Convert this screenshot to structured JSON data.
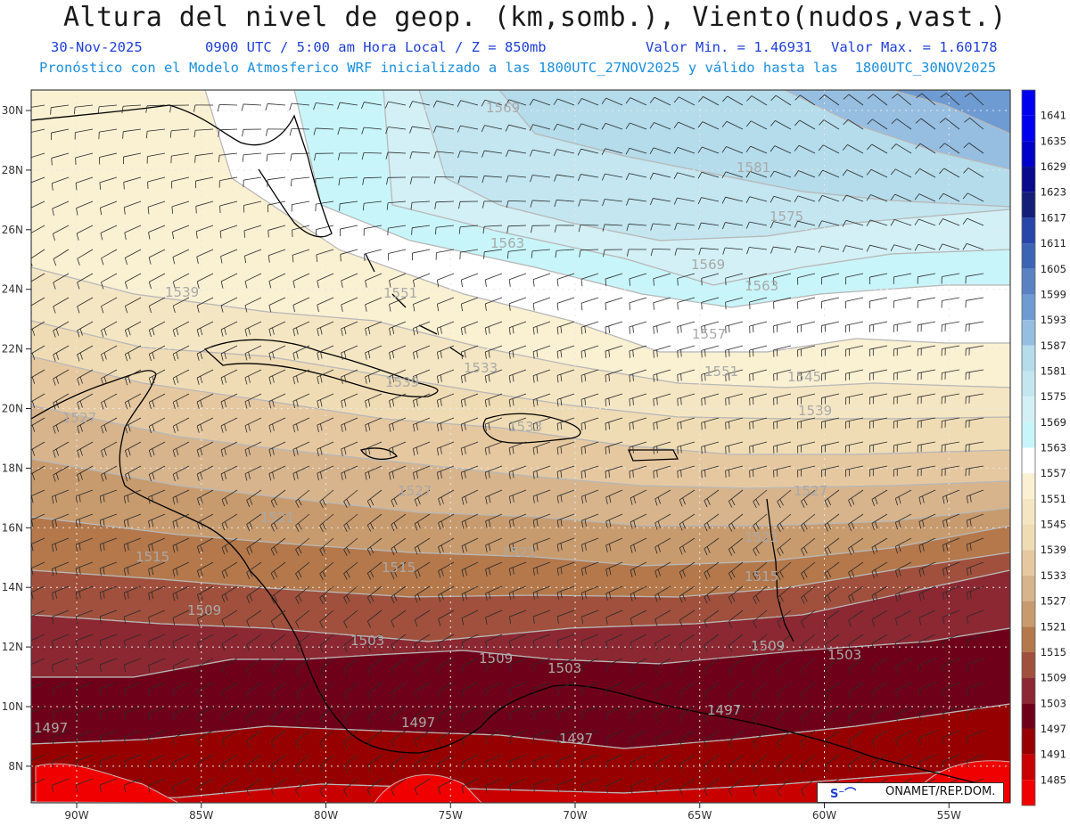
{
  "header": {
    "title": "Altura del nivel de geop. (km,somb.), Viento(nudos,vast.)",
    "date": "30-Nov-2025",
    "time": "0900 UTC / 5:00 am Hora Local / Z = 850mb",
    "min_value": "Valor Min. = 1.46931",
    "max_value": "Valor Max. = 1.60178",
    "forecast_info": "Pronóstico con el Modelo Atmosferico WRF inicializado a las 1800UTC_27NOV2025 y válido hasta las  1800UTC_30NOV2025"
  },
  "map": {
    "lon_labels": [
      "90W",
      "85W",
      "80W",
      "75W",
      "70W",
      "65W",
      "60W",
      "55W"
    ],
    "lat_labels": [
      "30N",
      "28N",
      "26N",
      "24N",
      "22N",
      "20N",
      "18N",
      "16N",
      "14N",
      "12N",
      "10N",
      "8N"
    ],
    "contour_labels": [
      "1569",
      "1581",
      "1575",
      "1563",
      "1557",
      "1551",
      "1545",
      "1539",
      "1533",
      "1527",
      "1521",
      "1515",
      "1509",
      "1503",
      "1497"
    ]
  },
  "colorbar": {
    "levels": [
      {
        "label": "1641",
        "color": "#0000f0"
      },
      {
        "label": "1635",
        "color": "#0000c8"
      },
      {
        "label": "1629",
        "color": "#0a0a8c"
      },
      {
        "label": "1623",
        "color": "#141e78"
      },
      {
        "label": "1617",
        "color": "#2846aa"
      },
      {
        "label": "1611",
        "color": "#3c64b4"
      },
      {
        "label": "1605",
        "color": "#5a82c3"
      },
      {
        "label": "1599",
        "color": "#6e9bd2"
      },
      {
        "label": "1593",
        "color": "#96bee1"
      },
      {
        "label": "1587",
        "color": "#b4dceb"
      },
      {
        "label": "1581",
        "color": "#c3e6f0"
      },
      {
        "label": "1575",
        "color": "#d2f0f5"
      },
      {
        "label": "1569",
        "color": "#c8f5fa"
      },
      {
        "label": "1563",
        "color": "#ffffff"
      },
      {
        "label": "1557",
        "color": "#faf0d2"
      },
      {
        "label": "1551",
        "color": "#f5e6c3"
      },
      {
        "label": "1545",
        "color": "#f0dcb4"
      },
      {
        "label": "1539",
        "color": "#e6c8a0"
      },
      {
        "label": "1533",
        "color": "#d7b48c"
      },
      {
        "label": "1527",
        "color": "#c89b6e"
      },
      {
        "label": "1521",
        "color": "#b4784b"
      },
      {
        "label": "1515",
        "color": "#a0503c"
      },
      {
        "label": "1509",
        "color": "#8c2832"
      },
      {
        "label": "1503",
        "color": "#6e0019"
      },
      {
        "label": "1497",
        "color": "#960000"
      },
      {
        "label": "1491",
        "color": "#c80000"
      },
      {
        "label": "1485",
        "color": "#f00000"
      }
    ]
  },
  "credit": {
    "symbol": "S⁻⌒",
    "text": "ONAMET/REP.DOM."
  }
}
